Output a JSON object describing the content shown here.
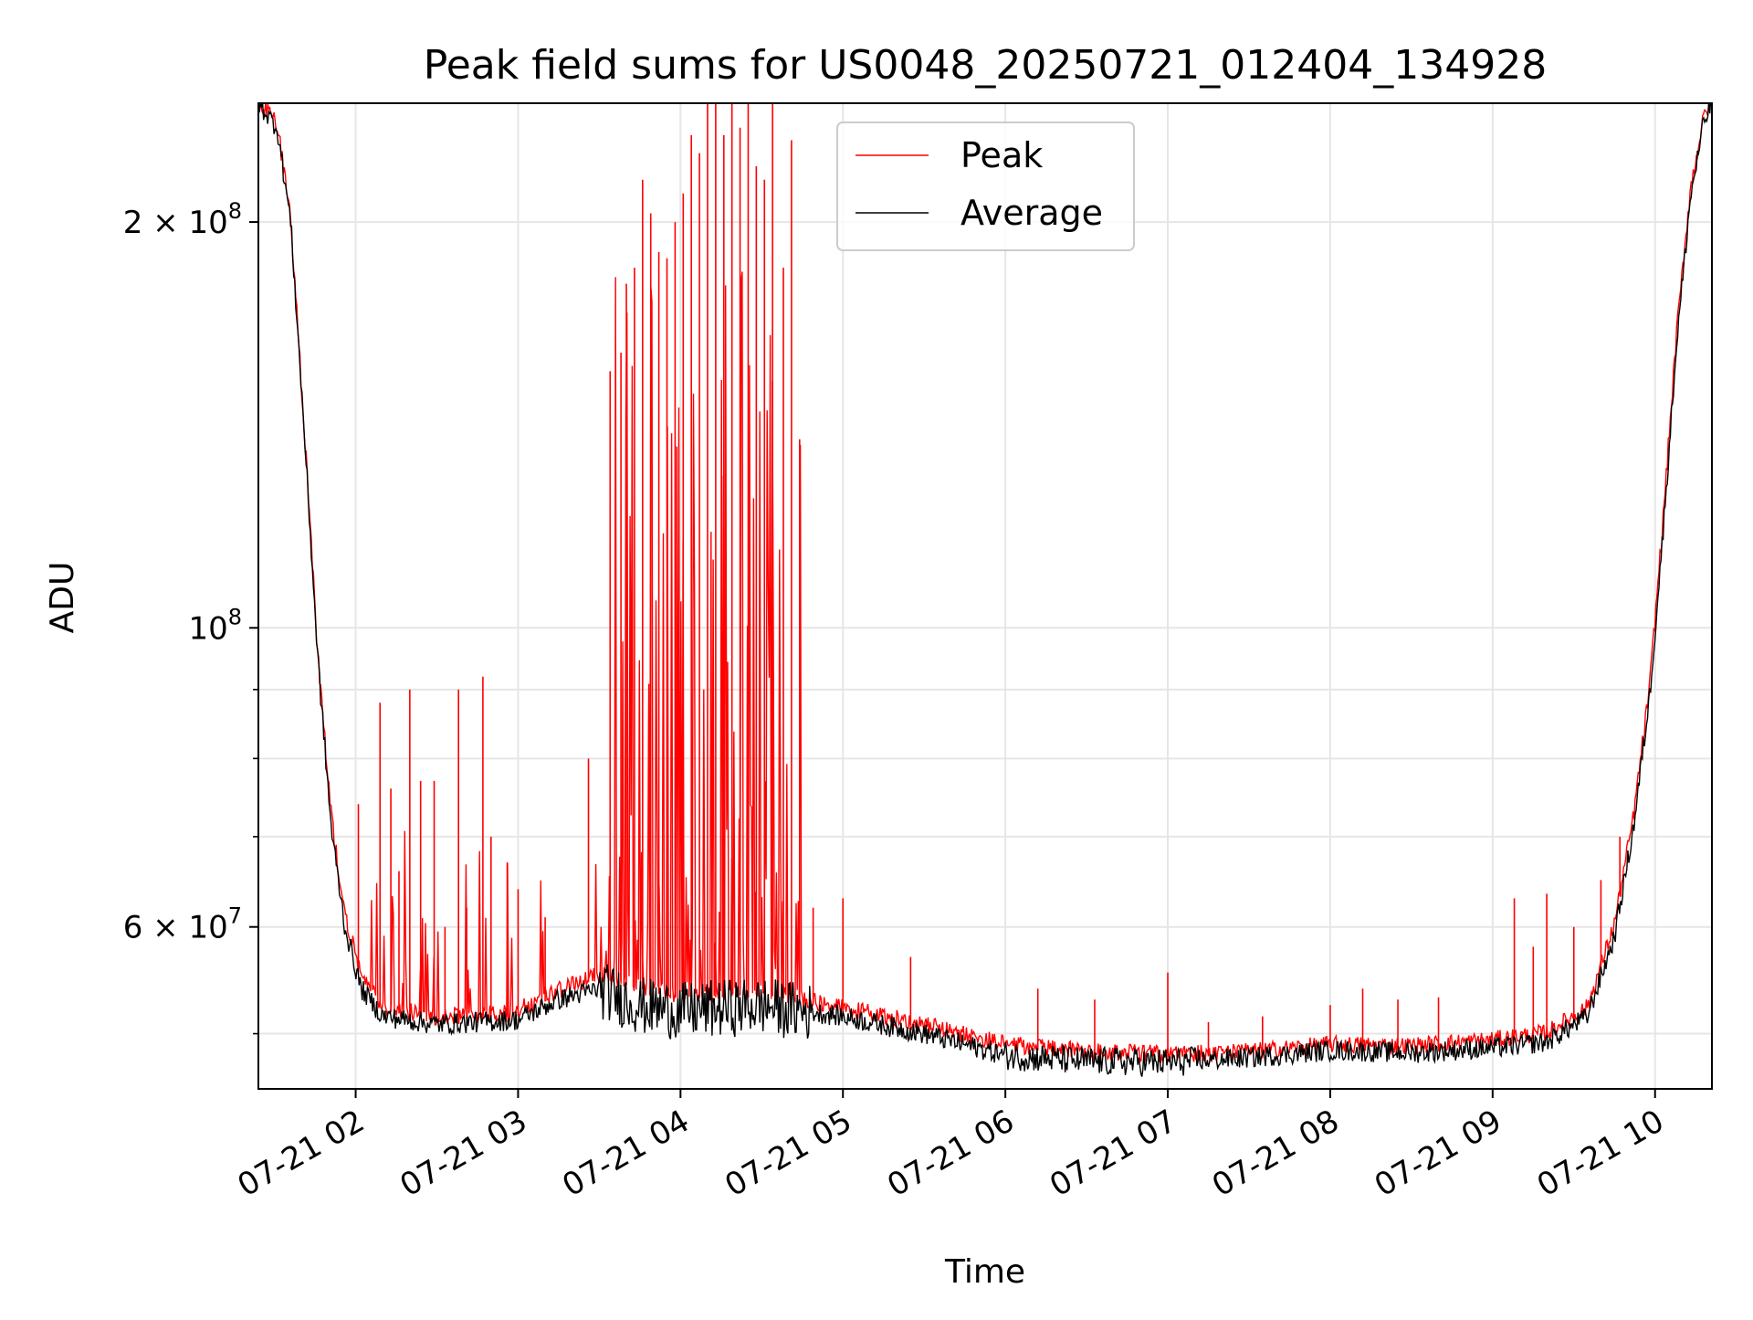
{
  "chart_data": {
    "type": "line",
    "title": "Peak field sums for US0048_20250721_012404_134928",
    "xlabel": "Time",
    "ylabel": "ADU",
    "yscale": "log",
    "grid": true,
    "legend_position": "top-center",
    "xlim": [
      "2025-07-21T01:24:04",
      "2025-07-21T10:21:00"
    ],
    "ylim": [
      45500000,
      245000000
    ],
    "x_ticks": [
      {
        "value": "2025-07-21T02:00:00",
        "label": "07-21 02"
      },
      {
        "value": "2025-07-21T03:00:00",
        "label": "07-21 03"
      },
      {
        "value": "2025-07-21T04:00:00",
        "label": "07-21 04"
      },
      {
        "value": "2025-07-21T05:00:00",
        "label": "07-21 05"
      },
      {
        "value": "2025-07-21T06:00:00",
        "label": "07-21 06"
      },
      {
        "value": "2025-07-21T07:00:00",
        "label": "07-21 07"
      },
      {
        "value": "2025-07-21T08:00:00",
        "label": "07-21 08"
      },
      {
        "value": "2025-07-21T09:00:00",
        "label": "07-21 09"
      },
      {
        "value": "2025-07-21T10:00:00",
        "label": "07-21 10"
      }
    ],
    "y_major_ticks": [
      {
        "value": 60000000,
        "label_base": "6 × 10",
        "label_exp": "7"
      },
      {
        "value": 100000000,
        "label_base": "10",
        "label_exp": "8"
      },
      {
        "value": 200000000,
        "label_base": "2 × 10",
        "label_exp": "8"
      }
    ],
    "y_minor_ticks": [
      50000000,
      70000000,
      80000000,
      90000000
    ],
    "series": [
      {
        "name": "Peak",
        "color": "#ff0000",
        "baseline_points": [
          [
            "2025-07-21T01:24:04",
            245000000
          ],
          [
            "2025-07-21T01:31:00",
            235000000
          ],
          [
            "2025-07-21T01:36:00",
            200000000
          ],
          [
            "2025-07-21T01:41:00",
            140000000
          ],
          [
            "2025-07-21T01:46:00",
            95000000
          ],
          [
            "2025-07-21T01:51:00",
            72000000
          ],
          [
            "2025-07-21T01:56:00",
            61000000
          ],
          [
            "2025-07-21T02:02:00",
            55000000
          ],
          [
            "2025-07-21T02:10:00",
            52000000
          ],
          [
            "2025-07-21T02:30:00",
            51200000
          ],
          [
            "2025-07-21T03:00:00",
            51500000
          ],
          [
            "2025-07-21T03:15:00",
            53500000
          ],
          [
            "2025-07-21T03:30:00",
            55000000
          ],
          [
            "2025-07-21T03:45:00",
            54000000
          ],
          [
            "2025-07-21T04:00:00",
            53000000
          ],
          [
            "2025-07-21T04:30:00",
            53500000
          ],
          [
            "2025-07-21T05:00:00",
            52000000
          ],
          [
            "2025-07-21T05:30:00",
            50500000
          ],
          [
            "2025-07-21T06:00:00",
            48800000
          ],
          [
            "2025-07-21T06:30:00",
            48300000
          ],
          [
            "2025-07-21T07:00:00",
            48000000
          ],
          [
            "2025-07-21T07:30:00",
            48200000
          ],
          [
            "2025-07-21T08:00:00",
            48800000
          ],
          [
            "2025-07-21T08:30:00",
            48700000
          ],
          [
            "2025-07-21T09:00:00",
            49200000
          ],
          [
            "2025-07-21T09:20:00",
            49800000
          ],
          [
            "2025-07-21T09:35:00",
            52000000
          ],
          [
            "2025-07-21T09:45:00",
            60000000
          ],
          [
            "2025-07-21T09:52:00",
            72000000
          ],
          [
            "2025-07-21T09:58:00",
            90000000
          ],
          [
            "2025-07-21T10:03:00",
            120000000
          ],
          [
            "2025-07-21T10:08:00",
            165000000
          ],
          [
            "2025-07-21T10:13:00",
            210000000
          ],
          [
            "2025-07-21T10:18:00",
            238000000
          ],
          [
            "2025-07-21T10:21:00",
            245000000
          ]
        ],
        "spikes": [
          [
            "2025-07-21T02:01:00",
            74000000
          ],
          [
            "2025-07-21T02:09:00",
            88000000
          ],
          [
            "2025-07-21T02:13:00",
            76000000
          ],
          [
            "2025-07-21T02:16:00",
            66000000
          ],
          [
            "2025-07-21T02:20:00",
            90000000
          ],
          [
            "2025-07-21T02:24:00",
            77000000
          ],
          [
            "2025-07-21T02:29:00",
            77000000
          ],
          [
            "2025-07-21T02:33:00",
            60000000
          ],
          [
            "2025-07-21T02:38:00",
            90000000
          ],
          [
            "2025-07-21T02:41:00",
            62000000
          ],
          [
            "2025-07-21T02:47:00",
            92000000
          ],
          [
            "2025-07-21T02:50:00",
            70000000
          ],
          [
            "2025-07-21T02:56:00",
            67000000
          ],
          [
            "2025-07-21T03:00:00",
            64000000
          ],
          [
            "2025-07-21T03:10:00",
            61000000
          ],
          [
            "2025-07-21T03:26:00",
            80000000
          ],
          [
            "2025-07-21T03:34:00",
            155000000
          ],
          [
            "2025-07-21T03:38:00",
            160000000
          ],
          [
            "2025-07-21T03:40:00",
            180000000
          ],
          [
            "2025-07-21T03:43:00",
            185000000
          ],
          [
            "2025-07-21T03:46:00",
            215000000
          ],
          [
            "2025-07-21T03:49:00",
            203000000
          ],
          [
            "2025-07-21T03:52:00",
            190000000
          ],
          [
            "2025-07-21T03:55:00",
            188000000
          ],
          [
            "2025-07-21T03:58:00",
            200000000
          ],
          [
            "2025-07-21T04:01:00",
            210000000
          ],
          [
            "2025-07-21T04:04:00",
            232000000
          ],
          [
            "2025-07-21T04:07:00",
            225000000
          ],
          [
            "2025-07-21T04:10:00",
            245000000
          ],
          [
            "2025-07-21T04:13:00",
            245000000
          ],
          [
            "2025-07-21T04:16:00",
            232000000
          ],
          [
            "2025-07-21T04:19:00",
            245000000
          ],
          [
            "2025-07-21T04:22:00",
            235000000
          ],
          [
            "2025-07-21T04:25:00",
            245000000
          ],
          [
            "2025-07-21T04:28:00",
            220000000
          ],
          [
            "2025-07-21T04:31:00",
            215000000
          ],
          [
            "2025-07-21T04:34:00",
            245000000
          ],
          [
            "2025-07-21T04:38:00",
            185000000
          ],
          [
            "2025-07-21T04:41:00",
            230000000
          ],
          [
            "2025-07-21T04:44:00",
            138000000
          ],
          [
            "2025-07-21T04:49:00",
            62000000
          ],
          [
            "2025-07-21T05:00:00",
            63000000
          ],
          [
            "2025-07-21T05:25:00",
            57000000
          ],
          [
            "2025-07-21T06:12:00",
            54000000
          ],
          [
            "2025-07-21T06:33:00",
            53000000
          ],
          [
            "2025-07-21T07:00:00",
            55500000
          ],
          [
            "2025-07-21T07:15:00",
            51000000
          ],
          [
            "2025-07-21T07:35:00",
            51500000
          ],
          [
            "2025-07-21T08:00:00",
            52500000
          ],
          [
            "2025-07-21T08:12:00",
            54000000
          ],
          [
            "2025-07-21T08:25:00",
            53000000
          ],
          [
            "2025-07-21T08:40:00",
            53200000
          ],
          [
            "2025-07-21T09:08:00",
            63000000
          ],
          [
            "2025-07-21T09:15:00",
            58000000
          ],
          [
            "2025-07-21T09:20:00",
            63500000
          ],
          [
            "2025-07-21T09:30:00",
            60000000
          ],
          [
            "2025-07-21T09:40:00",
            65000000
          ],
          [
            "2025-07-21T09:47:00",
            70000000
          ]
        ]
      },
      {
        "name": "Average",
        "color": "#000000",
        "points": [
          [
            "2025-07-21T01:24:04",
            245000000
          ],
          [
            "2025-07-21T01:31:00",
            235000000
          ],
          [
            "2025-07-21T01:36:00",
            200000000
          ],
          [
            "2025-07-21T01:41:00",
            140000000
          ],
          [
            "2025-07-21T01:46:00",
            95000000
          ],
          [
            "2025-07-21T01:51:00",
            71000000
          ],
          [
            "2025-07-21T01:56:00",
            60000000
          ],
          [
            "2025-07-21T02:02:00",
            54000000
          ],
          [
            "2025-07-21T02:10:00",
            51500000
          ],
          [
            "2025-07-21T02:30:00",
            50800000
          ],
          [
            "2025-07-21T03:00:00",
            51200000
          ],
          [
            "2025-07-21T03:15:00",
            53000000
          ],
          [
            "2025-07-21T03:30:00",
            54000000
          ],
          [
            "2025-07-21T03:45:00",
            52500000
          ],
          [
            "2025-07-21T04:00:00",
            52000000
          ],
          [
            "2025-07-21T04:30:00",
            52500000
          ],
          [
            "2025-07-21T05:00:00",
            51500000
          ],
          [
            "2025-07-21T05:30:00",
            50000000
          ],
          [
            "2025-07-21T06:00:00",
            48200000
          ],
          [
            "2025-07-21T06:30:00",
            47700000
          ],
          [
            "2025-07-21T07:00:00",
            47600000
          ],
          [
            "2025-07-21T07:30:00",
            48000000
          ],
          [
            "2025-07-21T08:00:00",
            48600000
          ],
          [
            "2025-07-21T08:30:00",
            48400000
          ],
          [
            "2025-07-21T09:00:00",
            48800000
          ],
          [
            "2025-07-21T09:20:00",
            49300000
          ],
          [
            "2025-07-21T09:35:00",
            51500000
          ],
          [
            "2025-07-21T09:45:00",
            59000000
          ],
          [
            "2025-07-21T09:52:00",
            71000000
          ],
          [
            "2025-07-21T09:58:00",
            89000000
          ],
          [
            "2025-07-21T10:03:00",
            118000000
          ],
          [
            "2025-07-21T10:08:00",
            163000000
          ],
          [
            "2025-07-21T10:13:00",
            208000000
          ],
          [
            "2025-07-21T10:18:00",
            237000000
          ],
          [
            "2025-07-21T10:21:00",
            245000000
          ]
        ]
      }
    ]
  }
}
